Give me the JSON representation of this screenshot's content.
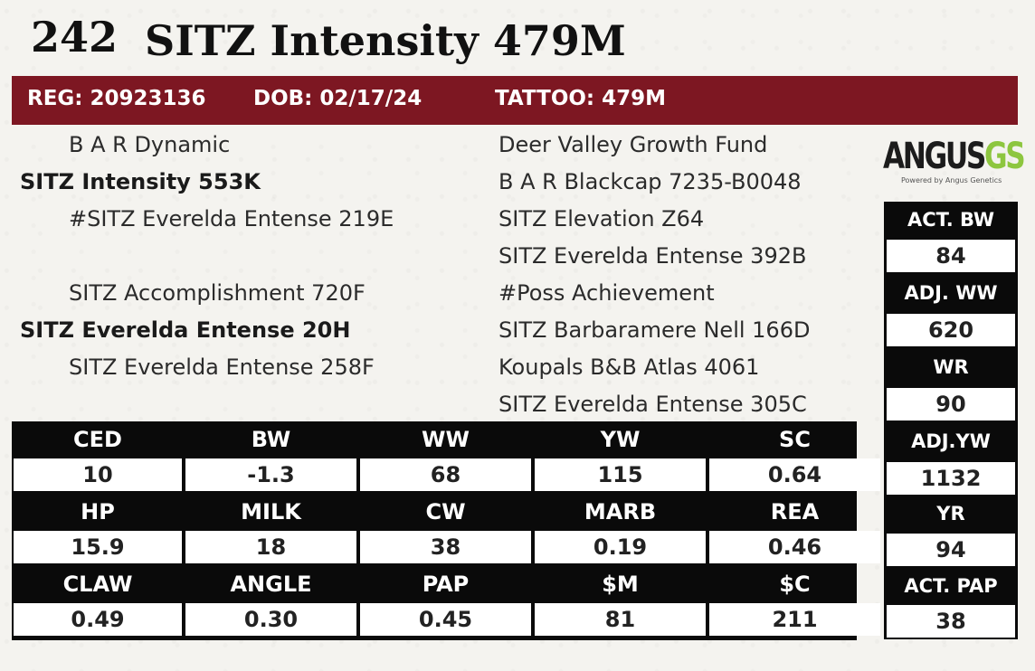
{
  "lot_number": "242",
  "animal_name": "SITZ Intensity 479M",
  "band": {
    "reg": "REG: 20923136",
    "dob": "DOB: 02/17/24",
    "tattoo": "TATTOO: 479M"
  },
  "pedigree_left": {
    "sire_sire": "B A R Dynamic",
    "sire": "SITZ Intensity 553K",
    "sire_dam": "#SITZ Everelda Entense 219E",
    "dam_sire": "SITZ Accomplishment 720F",
    "dam": "SITZ Everelda Entense 20H",
    "dam_dam": "SITZ Everelda Entense 258F"
  },
  "pedigree_right": [
    "Deer Valley Growth Fund",
    "B A R Blackcap 7235-B0048",
    "SITZ Elevation Z64",
    "SITZ Everelda Entense 392B",
    "#Poss Achievement",
    "SITZ Barbaramere Nell 166D",
    "Koupals B&B Atlas 4061",
    "SITZ Everelda Entense 305C"
  ],
  "logo": {
    "text_main": "ANGUS",
    "text_accent": "GS",
    "tagline": "Powered by Angus Genetics",
    "accent_color": "#8dc63f"
  },
  "epd_table": {
    "rows": [
      {
        "headers": [
          "CED",
          "BW",
          "WW",
          "YW",
          "SC"
        ],
        "values": [
          "10",
          "-1.3",
          "68",
          "115",
          "0.64"
        ]
      },
      {
        "headers": [
          "HP",
          "MILK",
          "CW",
          "MARB",
          "REA"
        ],
        "values": [
          "15.9",
          "18",
          "38",
          "0.19",
          "0.46"
        ]
      },
      {
        "headers": [
          "CLAW",
          "ANGLE",
          "PAP",
          "$M",
          "$C"
        ],
        "values": [
          "0.49",
          "0.30",
          "0.45",
          "81",
          "211"
        ]
      }
    ]
  },
  "performance": [
    {
      "label": "ACT. BW",
      "value": "84"
    },
    {
      "label": "ADJ. WW",
      "value": "620"
    },
    {
      "label": "WR",
      "value": "90"
    },
    {
      "label": "ADJ.YW",
      "value": "1132"
    },
    {
      "label": "YR",
      "value": "94"
    },
    {
      "label": "ACT. PAP",
      "value": "38"
    }
  ],
  "colors": {
    "band": "#7d1722",
    "table_bg": "#0a0a0a"
  }
}
